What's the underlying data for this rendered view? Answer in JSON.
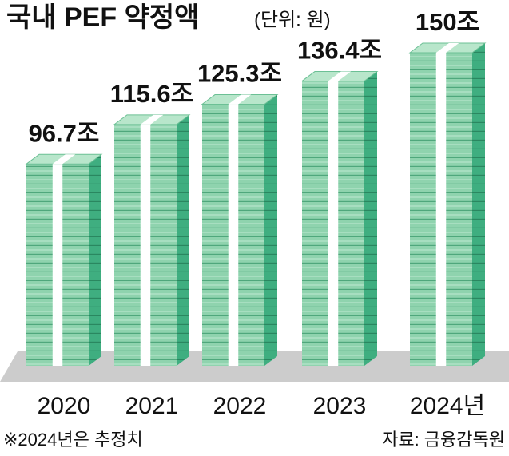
{
  "chart_data": {
    "type": "bar",
    "title": "국내 PEF 약정액",
    "subtitle": "(단위: 원)",
    "categories": [
      "2020",
      "2021",
      "2022",
      "2023",
      "2024년"
    ],
    "values": [
      96.7,
      115.6,
      125.3,
      136.4,
      150
    ],
    "value_labels": [
      "96.7조",
      "115.6조",
      "125.3조",
      "136.4조",
      "150조"
    ],
    "color": "#8fd3ae",
    "note": "※2024년은 추정치",
    "source": "자료: 금융감독원"
  }
}
